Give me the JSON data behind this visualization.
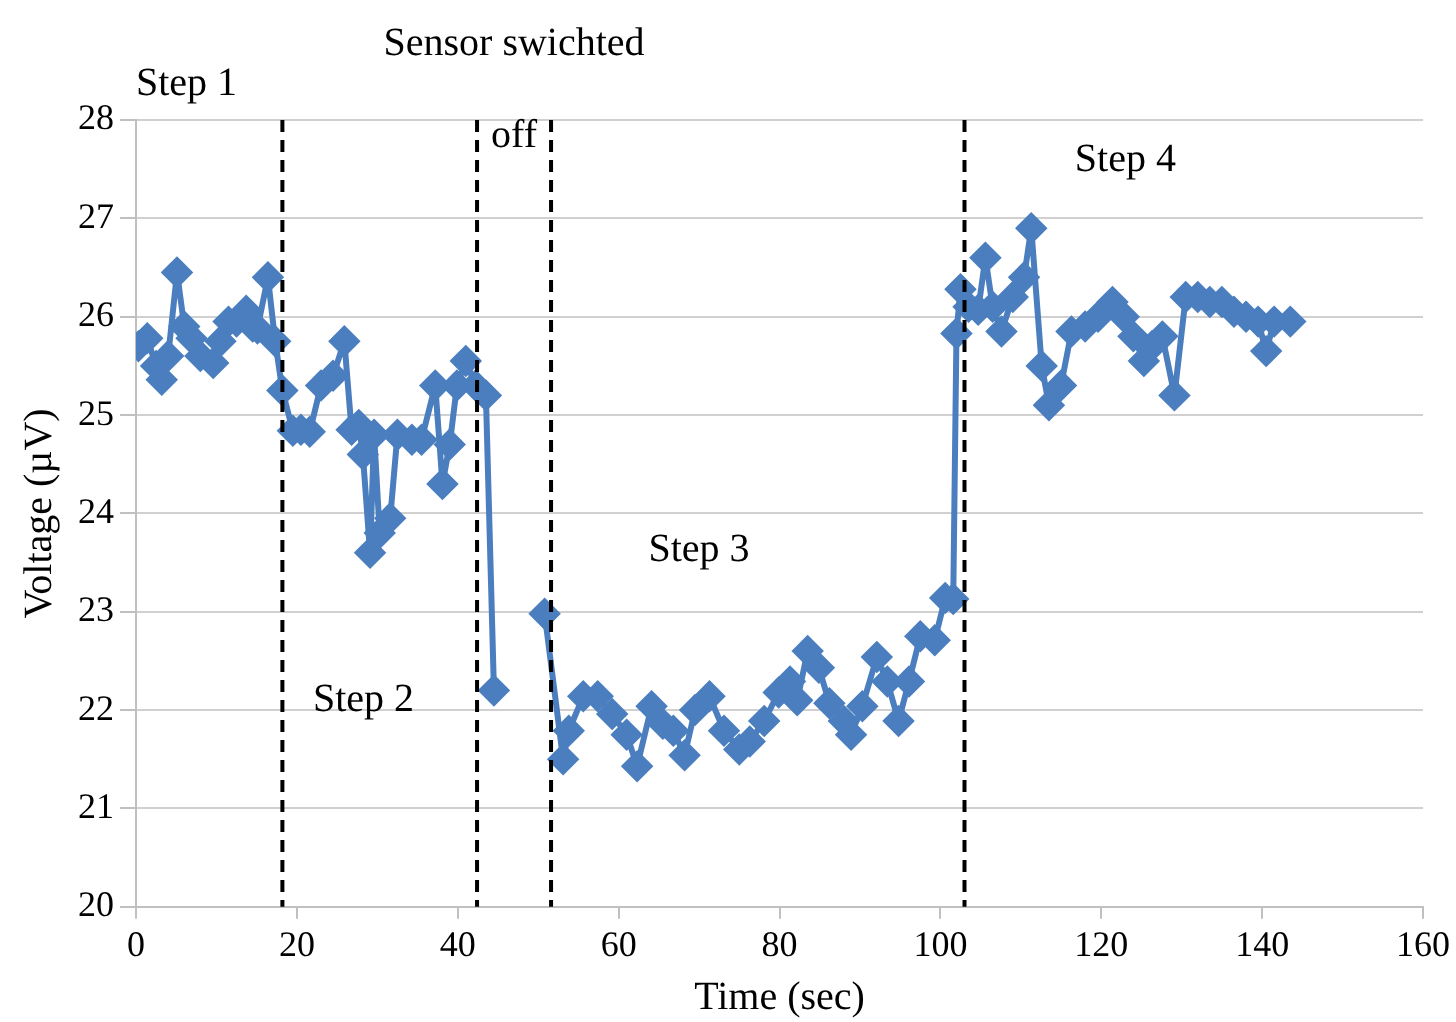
{
  "chart_data": {
    "type": "line",
    "xlabel": "Time (sec)",
    "ylabel": "Voltage (µV)",
    "xlim": [
      0,
      160
    ],
    "xticks": [
      0,
      20,
      40,
      60,
      80,
      100,
      120,
      140,
      160
    ],
    "ylim": [
      20,
      28
    ],
    "yticks": [
      20,
      21,
      22,
      23,
      24,
      25,
      26,
      27,
      28
    ],
    "grid": "y",
    "legend": false,
    "marker": "diamond",
    "line_style": "solid",
    "series": [
      {
        "color": "#4a7ebf",
        "x": [
          0.3,
          1.4,
          2.5,
          3.2,
          4,
          5.1,
          6,
          6.9,
          8,
          9.6,
          10.5,
          11.5,
          12.5,
          13.7,
          14.5,
          15.1,
          16.4,
          17.3,
          18.2,
          19.5,
          20.5,
          21.6,
          23,
          24.5,
          25.9,
          26.8,
          27.7,
          28.2,
          29.1,
          29.6,
          30.3,
          31.6,
          32.5,
          34.3,
          35.5,
          37.2,
          38.1,
          39,
          39.9,
          41,
          42.2,
          43.5,
          44.5,
          47.5,
          50.8,
          53.1,
          53.8,
          55.6,
          57.4,
          59.2,
          61,
          62.3,
          64.1,
          65.5,
          66.8,
          68.2,
          69.5,
          71.3,
          73.1,
          75,
          76.3,
          78.1,
          79.9,
          81.3,
          82.2,
          83.5,
          84.9,
          86.2,
          88,
          88.9,
          90.3,
          92.1,
          93.4,
          94.8,
          96.1,
          97.5,
          99.3,
          100.6,
          101.6,
          102,
          102.5,
          103.5,
          104.7,
          105.6,
          106.5,
          107.6,
          109,
          110.4,
          111.3,
          112.6,
          113.5,
          115,
          116.3,
          118,
          119.6,
          121.4,
          122.8,
          124,
          125.3,
          126.3,
          127.6,
          129.1,
          130.5,
          132,
          133.5,
          135,
          136.5,
          138,
          139.5,
          140.5,
          141.5,
          143.5
        ],
        "values": [
          25.7,
          25.78,
          25.5,
          25.36,
          25.6,
          26.45,
          25.9,
          25.78,
          25.6,
          25.53,
          25.75,
          25.95,
          25.95,
          26.06,
          25.9,
          25.88,
          26.4,
          25.75,
          25.25,
          24.84,
          24.85,
          24.83,
          25.3,
          25.4,
          25.75,
          24.85,
          24.9,
          24.6,
          23.6,
          24.8,
          23.8,
          23.95,
          24.8,
          24.75,
          24.75,
          25.3,
          24.3,
          24.7,
          25.3,
          25.55,
          25.3,
          25.2,
          22.2,
          null,
          22.98,
          21.5,
          21.79,
          22.14,
          22.14,
          21.96,
          21.75,
          21.43,
          22.04,
          21.86,
          21.79,
          21.54,
          22,
          22.14,
          21.79,
          21.6,
          21.68,
          21.89,
          22.18,
          22.29,
          22.1,
          22.6,
          22.43,
          22.07,
          21.89,
          21.75,
          22.04,
          22.54,
          22.29,
          21.89,
          22.29,
          22.75,
          22.71,
          23.14,
          23.13,
          25.83,
          26.28,
          26.1,
          26.07,
          26.6,
          26.1,
          25.85,
          26.2,
          26.4,
          26.9,
          25.5,
          25.1,
          25.3,
          25.85,
          25.9,
          26,
          26.15,
          26,
          25.8,
          25.55,
          25.7,
          25.8,
          25.2,
          26.2,
          26.2,
          26.15,
          26.15,
          26.05,
          26,
          25.95,
          25.65,
          25.95,
          25.95
        ]
      }
    ],
    "ref_lines": [
      {
        "axis": "x",
        "value": 18.2,
        "color": "#000000",
        "line_style": "dashed"
      },
      {
        "axis": "x",
        "value": 42.4,
        "color": "#000000",
        "line_style": "dashed"
      },
      {
        "axis": "x",
        "value": 51.6,
        "color": "#000000",
        "line_style": "dashed"
      },
      {
        "axis": "x",
        "value": 103,
        "color": "#000000",
        "line_style": "dashed"
      }
    ],
    "annotations": [
      "Step 1",
      "Sensor swichted off",
      "Step 2",
      "Step 3",
      "Step 4"
    ]
  }
}
